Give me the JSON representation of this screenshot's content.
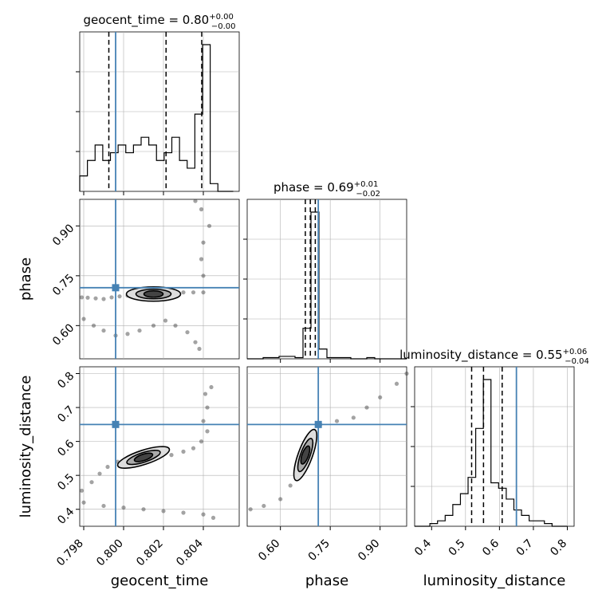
{
  "chart_data": {
    "type": "corner",
    "colors": {
      "truth": "#4682b4",
      "hist": "#000000",
      "grid": "#b0b0b0"
    },
    "parameters": [
      {
        "name": "geocent_time",
        "label": "geocent_time",
        "range": [
          0.7978,
          0.8058
        ],
        "truth": 0.7996,
        "ticks": [
          0.798,
          0.8,
          0.802,
          0.804
        ],
        "tick_labels": [
          "0.798",
          "0.800",
          "0.802",
          "0.804"
        ]
      },
      {
        "name": "phase",
        "label": "phase",
        "range": [
          0.5,
          0.98
        ],
        "truth": 0.714,
        "ticks": [
          0.6,
          0.75,
          0.9
        ],
        "tick_labels": [
          "0.60",
          "0.75",
          "0.90"
        ]
      },
      {
        "name": "luminosity_distance",
        "label": "luminosity_distance",
        "range": [
          0.35,
          0.82
        ],
        "truth": 0.65,
        "ticks": [
          0.4,
          0.5,
          0.6,
          0.7,
          0.8
        ],
        "tick_labels": [
          "0.4",
          "0.5",
          "0.6",
          "0.7",
          "0.8"
        ]
      }
    ],
    "titles": [
      {
        "prefix": "geocent_time = 0.80",
        "plus": "+0.00",
        "minus": "−0.00"
      },
      {
        "prefix": "phase = 0.69",
        "plus": "+0.01",
        "minus": "−0.02"
      },
      {
        "prefix": "luminosity_distance = 0.55",
        "plus": "+0.06",
        "minus": "−0.04"
      }
    ],
    "histograms": [
      {
        "param": "geocent_time",
        "edges_range": [
          0.7978,
          0.8055
        ],
        "counts": [
          2,
          4,
          6,
          4,
          5,
          6,
          5,
          6,
          7,
          6,
          4,
          5,
          7,
          4,
          3,
          10,
          19,
          1,
          0,
          0
        ],
        "quantiles": [
          0.79926,
          0.80213,
          0.80392
        ]
      },
      {
        "param": "phase",
        "edges_range": [
          0.5,
          0.98
        ],
        "counts": [
          0,
          0,
          1,
          1,
          2,
          2,
          1,
          25,
          120,
          8,
          1,
          1,
          1,
          0,
          0,
          1,
          0,
          0,
          0,
          0
        ],
        "quantiles": [
          0.675,
          0.69,
          0.705
        ]
      },
      {
        "param": "luminosity_distance",
        "edges_range": [
          0.35,
          0.8
        ],
        "counts": [
          0,
          0,
          0.5,
          1,
          2,
          4,
          6,
          9,
          18,
          27,
          8,
          7,
          5,
          3,
          2,
          1,
          1,
          0.5,
          0,
          0
        ],
        "quantiles": [
          0.518,
          0.553,
          0.608
        ]
      }
    ],
    "scatter_pairs": [
      {
        "x": "geocent_time",
        "y": "phase",
        "points": [
          [
            0.7979,
            0.685
          ],
          [
            0.7982,
            0.684
          ],
          [
            0.7986,
            0.682
          ],
          [
            0.799,
            0.68
          ],
          [
            0.7994,
            0.685
          ],
          [
            0.7998,
            0.688
          ],
          [
            0.8002,
            0.69
          ],
          [
            0.8006,
            0.695
          ],
          [
            0.801,
            0.7
          ],
          [
            0.8015,
            0.698
          ],
          [
            0.802,
            0.7
          ],
          [
            0.8025,
            0.697
          ],
          [
            0.803,
            0.7
          ],
          [
            0.8035,
            0.7
          ],
          [
            0.804,
            0.7
          ],
          [
            0.804,
            0.75
          ],
          [
            0.8039,
            0.8
          ],
          [
            0.804,
            0.85
          ],
          [
            0.8043,
            0.9
          ],
          [
            0.8039,
            0.95
          ],
          [
            0.8036,
            0.975
          ],
          [
            0.798,
            0.62
          ],
          [
            0.7985,
            0.6
          ],
          [
            0.799,
            0.585
          ],
          [
            0.7996,
            0.57
          ],
          [
            0.8002,
            0.575
          ],
          [
            0.8008,
            0.585
          ],
          [
            0.8015,
            0.6
          ],
          [
            0.8021,
            0.615
          ],
          [
            0.8026,
            0.6
          ],
          [
            0.8032,
            0.58
          ],
          [
            0.8036,
            0.55
          ],
          [
            0.8038,
            0.53
          ]
        ],
        "contour_center": [
          0.8015,
          0.695
        ]
      },
      {
        "x": "geocent_time",
        "y": "luminosity_distance",
        "points": [
          [
            0.7979,
            0.455
          ],
          [
            0.7984,
            0.48
          ],
          [
            0.7988,
            0.505
          ],
          [
            0.7992,
            0.525
          ],
          [
            0.7997,
            0.54
          ],
          [
            0.8003,
            0.548
          ],
          [
            0.801,
            0.552
          ],
          [
            0.8017,
            0.555
          ],
          [
            0.8024,
            0.56
          ],
          [
            0.803,
            0.57
          ],
          [
            0.8035,
            0.58
          ],
          [
            0.8039,
            0.6
          ],
          [
            0.8042,
            0.63
          ],
          [
            0.804,
            0.66
          ],
          [
            0.8042,
            0.7
          ],
          [
            0.8041,
            0.74
          ],
          [
            0.8044,
            0.76
          ],
          [
            0.798,
            0.42
          ],
          [
            0.799,
            0.41
          ],
          [
            0.8,
            0.405
          ],
          [
            0.801,
            0.4
          ],
          [
            0.802,
            0.395
          ],
          [
            0.803,
            0.39
          ],
          [
            0.804,
            0.385
          ],
          [
            0.8045,
            0.375
          ]
        ],
        "contour_center": [
          0.801,
          0.553
        ]
      },
      {
        "x": "phase",
        "y": "luminosity_distance",
        "points": [
          [
            0.51,
            0.4
          ],
          [
            0.55,
            0.41
          ],
          [
            0.6,
            0.43
          ],
          [
            0.63,
            0.47
          ],
          [
            0.66,
            0.52
          ],
          [
            0.67,
            0.56
          ],
          [
            0.69,
            0.6
          ],
          [
            0.72,
            0.65
          ],
          [
            0.77,
            0.66
          ],
          [
            0.82,
            0.67
          ],
          [
            0.86,
            0.7
          ],
          [
            0.9,
            0.73
          ],
          [
            0.95,
            0.77
          ],
          [
            0.98,
            0.8
          ]
        ],
        "contour_center": [
          0.675,
          0.56
        ]
      }
    ]
  }
}
